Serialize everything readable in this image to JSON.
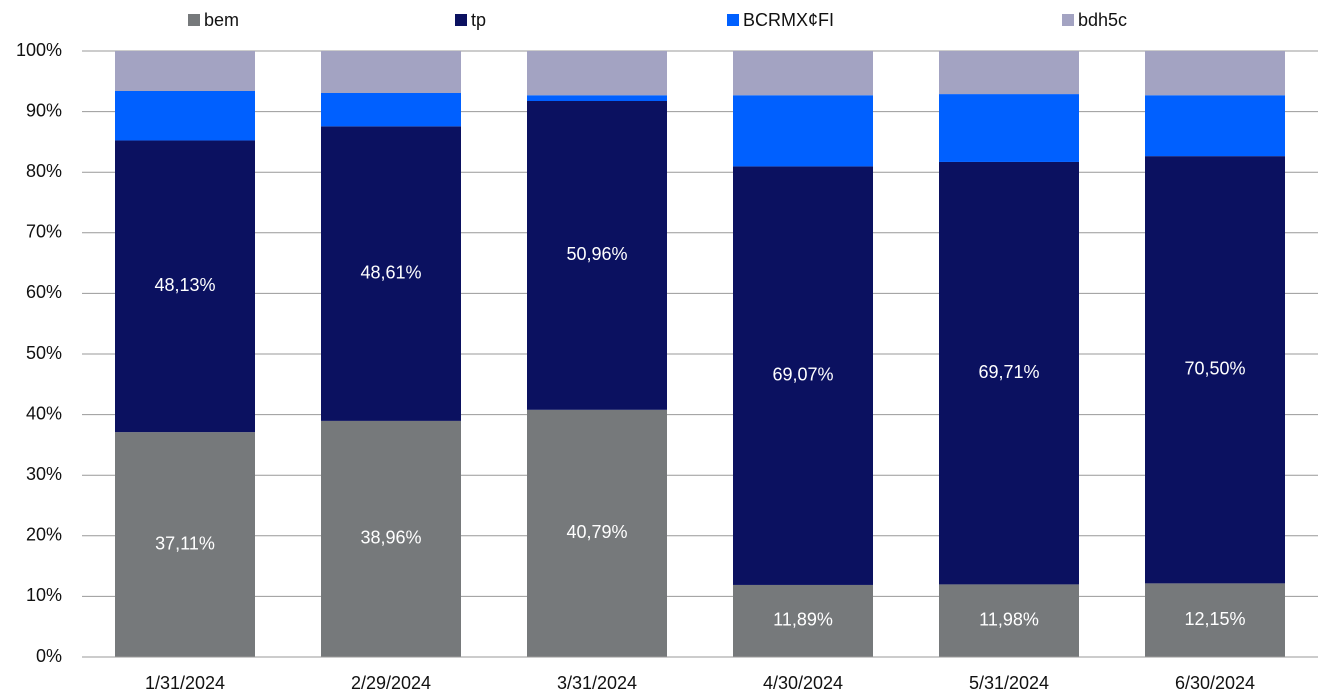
{
  "chart_data": {
    "type": "stacked_bar",
    "categories": [
      "1/31/2024",
      "2/29/2024",
      "3/31/2024",
      "4/30/2024",
      "5/31/2024",
      "6/30/2024"
    ],
    "series": [
      {
        "name": "bem",
        "color": "#76797b",
        "values": [
          37.11,
          38.96,
          40.79,
          11.89,
          11.98,
          12.15
        ],
        "value_labels": [
          "37,11%",
          "38,96%",
          "40,79%",
          "11,89%",
          "11,98%",
          "12,15%"
        ]
      },
      {
        "name": "tp",
        "color": "#0b1160",
        "values": [
          48.13,
          48.61,
          50.96,
          69.07,
          69.71,
          70.5
        ],
        "value_labels": [
          "48,13%",
          "48,61%",
          "50,96%",
          "69,07%",
          "69,71%",
          "70,50%"
        ]
      },
      {
        "name": "BCRMX¢FI",
        "color": "#0060ff",
        "values": [
          8.16,
          5.5,
          0.95,
          11.74,
          11.2,
          10.05
        ]
      },
      {
        "name": "bdh5c",
        "color": "#a3a3c2",
        "values": [
          6.6,
          6.93,
          7.3,
          7.3,
          7.11,
          7.3
        ]
      }
    ],
    "ylim": [
      0,
      100
    ],
    "yticks": [
      {
        "value": 0,
        "label": "0%"
      },
      {
        "value": 10,
        "label": "10%"
      },
      {
        "value": 20,
        "label": "20%"
      },
      {
        "value": 30,
        "label": "30%"
      },
      {
        "value": 40,
        "label": "40%"
      },
      {
        "value": 50,
        "label": "50%"
      },
      {
        "value": 60,
        "label": "60%"
      },
      {
        "value": 70,
        "label": "70%"
      },
      {
        "value": 80,
        "label": "80%"
      },
      {
        "value": 90,
        "label": "90%"
      },
      {
        "value": 100,
        "label": "100%"
      }
    ],
    "grid": true
  }
}
